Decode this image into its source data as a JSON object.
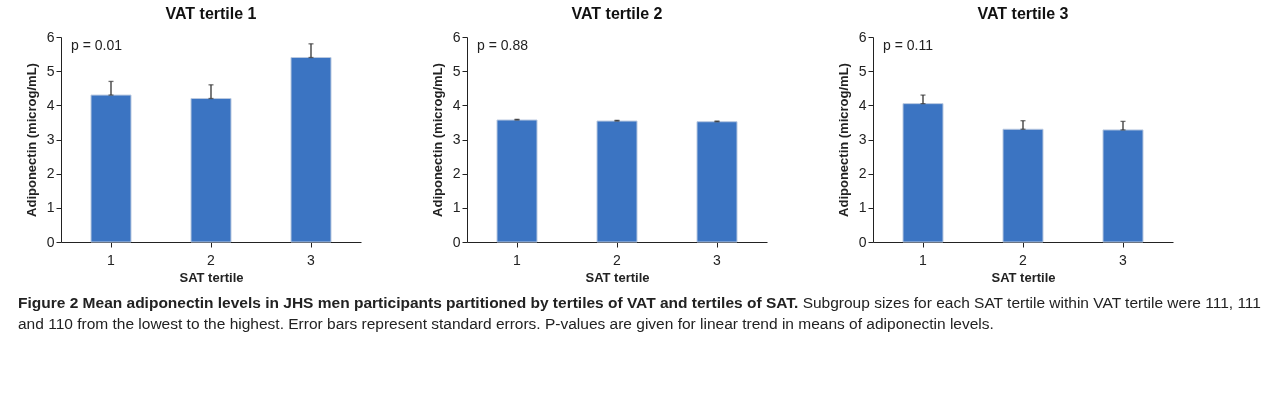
{
  "chart_data": [
    {
      "type": "bar",
      "title": "VAT tertile 1",
      "xlabel": "SAT tertile",
      "ylabel": "Adiponectin (microg/mL)",
      "categories": [
        "1",
        "2",
        "3"
      ],
      "values": [
        4.3,
        4.2,
        5.4
      ],
      "errors": [
        [
          4.3,
          4.7
        ],
        [
          4.2,
          4.6
        ],
        [
          5.4,
          5.8
        ]
      ],
      "color": "#3b74c2",
      "ylim": [
        0,
        6
      ],
      "yticks": [
        0,
        1,
        2,
        3,
        4,
        5,
        6
      ],
      "annotations": [
        "p  = 0.01"
      ]
    },
    {
      "type": "bar",
      "title": "VAT tertile 2",
      "xlabel": "SAT tertile",
      "ylabel": "Adiponectin (microg/mL)",
      "categories": [
        "1",
        "2",
        "3"
      ],
      "values": [
        3.57,
        3.54,
        3.52
      ],
      "errors": [
        [
          3.57,
          3.59
        ],
        [
          3.54,
          3.56
        ],
        [
          3.52,
          3.54
        ]
      ],
      "color": "#3b74c2",
      "ylim": [
        0,
        6
      ],
      "yticks": [
        0,
        1,
        2,
        3,
        4,
        5,
        6
      ],
      "annotations": [
        "p  = 0.88"
      ]
    },
    {
      "type": "bar",
      "title": "VAT tertile 3",
      "xlabel": "SAT tertile",
      "ylabel": "Adiponectin (microg/mL)",
      "categories": [
        "1",
        "2",
        "3"
      ],
      "values": [
        4.05,
        3.3,
        3.28
      ],
      "errors": [
        [
          4.05,
          4.3
        ],
        [
          3.3,
          3.55
        ],
        [
          3.28,
          3.53
        ]
      ],
      "color": "#3b74c2",
      "ylim": [
        0,
        6
      ],
      "yticks": [
        0,
        1,
        2,
        3,
        4,
        5,
        6
      ],
      "annotations": [
        "p = 0.11",
        "Figure 2 Mean adiponectin levels in JHS men participants partitioned by tertiles of VAT and tertiles of SAT.",
        "Subgroup sizes for each SAT tertile within VAT tertile were 111, 111 and 110 from the lowest to the highest. Error bars represent standard errors. P-values are given for linear trend in means of adiponectin levels."
      ]
    }
  ]
}
